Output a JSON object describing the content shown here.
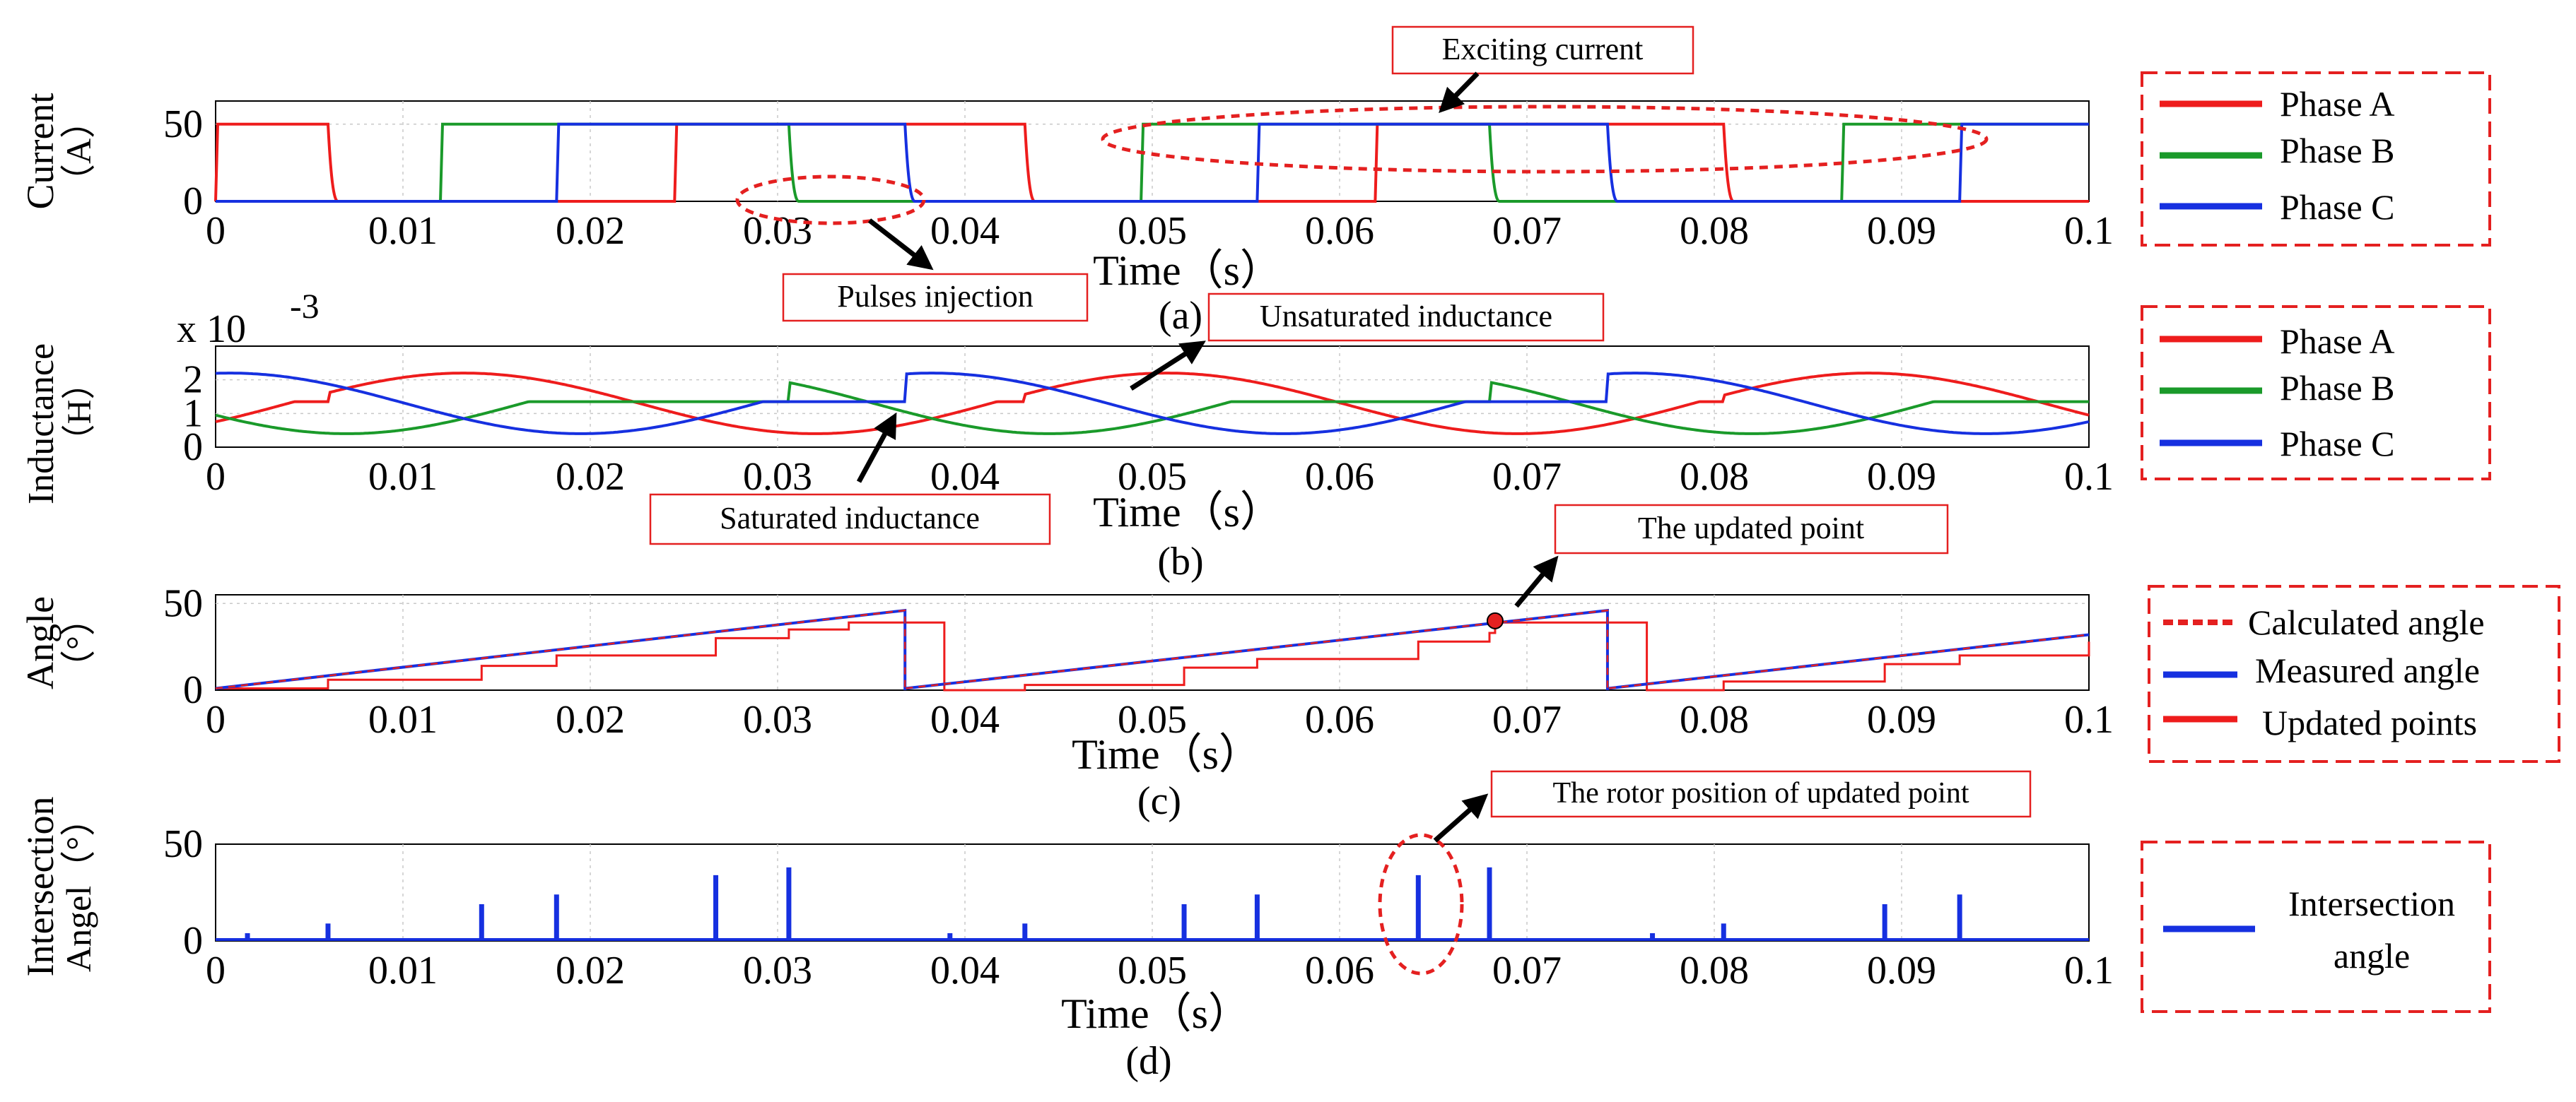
{
  "colors": {
    "phase_a": "#ee1c1c",
    "phase_b": "#1a9a2a",
    "phase_c": "#1630e0",
    "annotation_red": "#e42020",
    "axis": "#000000",
    "grid": "#c8c8c8"
  },
  "chart_data": [
    {
      "id": "a",
      "type": "line",
      "caption": "(a)",
      "xlabel": "Time（s）",
      "ylabel_lines": [
        "Current",
        "（A）"
      ],
      "xlim": [
        0,
        0.1
      ],
      "ylim": [
        0,
        65
      ],
      "xticks": [
        "0",
        "0.01",
        "0.02",
        "0.03",
        "0.04",
        "0.05",
        "0.06",
        "0.07",
        "0.08",
        "0.09",
        "0.1"
      ],
      "yticks": [
        0,
        50
      ],
      "ytick_labels": [
        "0",
        "50"
      ],
      "series": [
        {
          "name": "Phase A",
          "color_key": "phase_a",
          "high": 50,
          "low": 0,
          "intervals": [
            [
              0,
              0.006
            ],
            [
              0.0245,
              0.0432
            ],
            [
              0.0619,
              0.0805
            ]
          ]
        },
        {
          "name": "Phase B",
          "color_key": "phase_b",
          "high": 50,
          "low": 0,
          "intervals": [
            [
              0.012,
              0.0306
            ],
            [
              0.0494,
              0.068
            ],
            [
              0.0868,
              0.1
            ]
          ]
        },
        {
          "name": "Phase C",
          "color_key": "phase_c",
          "high": 50,
          "low": 0,
          "intervals": [
            [
              0.0182,
              0.0368
            ],
            [
              0.0556,
              0.0743
            ],
            [
              0.0931,
              0.1
            ]
          ]
        }
      ],
      "legend": [
        "Phase A",
        "Phase B",
        "Phase C"
      ],
      "annotations": {
        "exciting_current": "Exciting current",
        "pulses_injection": "Pulses injection"
      }
    },
    {
      "id": "b",
      "type": "line",
      "caption": "(b)",
      "xlabel": "Time（s）",
      "ylabel_lines": [
        "Inductance",
        "（H）"
      ],
      "exponent_label": "x 10",
      "exponent_power": "-3",
      "xlim": [
        0,
        0.1
      ],
      "ylim": [
        0,
        3
      ],
      "xticks": [
        "0",
        "0.01",
        "0.02",
        "0.03",
        "0.04",
        "0.05",
        "0.06",
        "0.07",
        "0.08",
        "0.09",
        "0.1"
      ],
      "yticks": [
        0,
        1,
        2
      ],
      "ytick_labels": [
        "0",
        "1",
        "2"
      ],
      "period": 0.0375,
      "lmin": 0.4,
      "lmax": 2.2,
      "lsat": 1.35,
      "series": [
        {
          "name": "Phase A",
          "color_key": "phase_a",
          "phase_shift": 0.0,
          "excited": [
            [
              0,
              0.006
            ],
            [
              0.0245,
              0.0432
            ],
            [
              0.0619,
              0.0805
            ]
          ]
        },
        {
          "name": "Phase B",
          "color_key": "phase_b",
          "phase_shift": 0.0125,
          "excited": [
            [
              0.012,
              0.0306
            ],
            [
              0.0494,
              0.068
            ],
            [
              0.0868,
              0.1
            ]
          ]
        },
        {
          "name": "Phase C",
          "color_key": "phase_c",
          "phase_shift": 0.025,
          "excited": [
            [
              0.0182,
              0.0368
            ],
            [
              0.0556,
              0.0743
            ],
            [
              0.0931,
              0.1
            ]
          ]
        }
      ],
      "legend": [
        "Phase A",
        "Phase B",
        "Phase C"
      ],
      "annotations": {
        "unsaturated": "Unsaturated inductance",
        "saturated": "Saturated inductance"
      }
    },
    {
      "id": "c",
      "type": "line",
      "caption": "(c)",
      "xlabel": "Time（s）",
      "ylabel_lines": [
        "Angle",
        "（°）"
      ],
      "xlim": [
        0,
        0.1
      ],
      "ylim": [
        0,
        55
      ],
      "xticks": [
        "0",
        "0.01",
        "0.02",
        "0.03",
        "0.04",
        "0.05",
        "0.06",
        "0.07",
        "0.08",
        "0.09",
        "0.1"
      ],
      "yticks": [
        0,
        50
      ],
      "ytick_labels": [
        "0",
        "50"
      ],
      "ramp_segments": [
        {
          "x0": 0.0,
          "x1": 0.0368,
          "y0": 1,
          "y1": 46
        },
        {
          "x0": 0.0368,
          "x1": 0.0743,
          "y0": 1,
          "y1": 46
        },
        {
          "x0": 0.0743,
          "x1": 0.1,
          "y0": 1,
          "y1": 32
        }
      ],
      "updated_points": [
        [
          0.0,
          1
        ],
        [
          0.006,
          6
        ],
        [
          0.0142,
          14
        ],
        [
          0.0182,
          20
        ],
        [
          0.0267,
          30
        ],
        [
          0.0306,
          35
        ],
        [
          0.0338,
          39
        ],
        [
          0.0389,
          0
        ],
        [
          0.0432,
          3
        ],
        [
          0.0517,
          13
        ],
        [
          0.0556,
          18
        ],
        [
          0.0642,
          28
        ],
        [
          0.068,
          33
        ],
        [
          0.0683,
          39
        ],
        [
          0.0764,
          0
        ],
        [
          0.0805,
          5
        ],
        [
          0.0891,
          15
        ],
        [
          0.0931,
          20
        ],
        [
          0.1,
          28
        ]
      ],
      "highlight_point": [
        0.0683,
        40
      ],
      "legend": [
        "Calculated angle",
        "Measured angle",
        "Updated points"
      ],
      "annotations": {
        "updated_point": "The updated point"
      }
    },
    {
      "id": "d",
      "type": "bar",
      "caption": "(d)",
      "xlabel": "Time（s）",
      "ylabel_lines": [
        "Intersection",
        "Angel（°）"
      ],
      "xlim": [
        0,
        0.1
      ],
      "ylim": [
        0,
        50
      ],
      "xticks": [
        "0",
        "0.01",
        "0.02",
        "0.03",
        "0.04",
        "0.05",
        "0.06",
        "0.07",
        "0.08",
        "0.09",
        "0.1"
      ],
      "yticks": [
        0,
        50
      ],
      "ytick_labels": [
        "0",
        "50"
      ],
      "spikes": [
        [
          0.0017,
          4
        ],
        [
          0.006,
          9
        ],
        [
          0.0142,
          19
        ],
        [
          0.0182,
          24
        ],
        [
          0.0267,
          34
        ],
        [
          0.0306,
          38
        ],
        [
          0.0392,
          4
        ],
        [
          0.0432,
          9
        ],
        [
          0.0517,
          19
        ],
        [
          0.0556,
          24
        ],
        [
          0.0642,
          34
        ],
        [
          0.068,
          38
        ],
        [
          0.0767,
          4
        ],
        [
          0.0805,
          9
        ],
        [
          0.0891,
          19
        ],
        [
          0.0931,
          24
        ]
      ],
      "legend": [
        "Intersection",
        "angle"
      ],
      "annotations": {
        "rotor_position": "The rotor position of updated point"
      }
    }
  ]
}
